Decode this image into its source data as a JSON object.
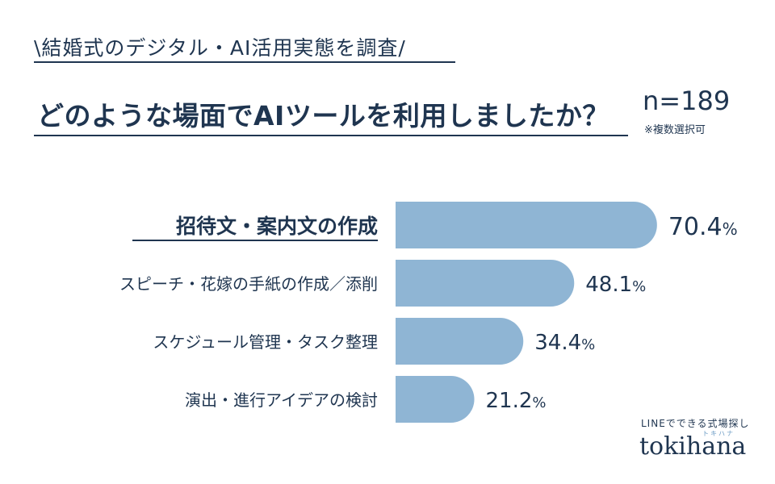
{
  "header": {
    "kicker": "\\結婚式のデジタル・AI活用実態を調査/",
    "question": "どのような場面でAIツールを利用しましたか？",
    "sample_size": "n=189",
    "note": "※複数選択可"
  },
  "brand": {
    "tagline": "LINEでできる式場探し",
    "reading": "トキハナ",
    "name": "tokihana"
  },
  "colors": {
    "bar": "#8fb5d4",
    "text": "#1f3550",
    "accent": "#6c9cc5"
  },
  "chart_data": {
    "type": "bar",
    "orientation": "horizontal",
    "categories": [
      "招待文・案内文の作成",
      "スピーチ・花嫁の手紙の作成／添削",
      "スケジュール管理・タスク整理",
      "演出・進行アイデアの検討"
    ],
    "values": [
      70.4,
      48.1,
      34.4,
      21.2
    ],
    "value_labels": [
      "70.4%",
      "48.1%",
      "34.4%",
      "21.2%"
    ],
    "highlighted_category": "招待文・案内文の作成",
    "xlim": [
      0,
      100
    ],
    "grid": false
  }
}
